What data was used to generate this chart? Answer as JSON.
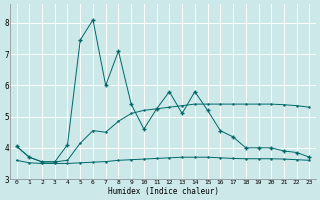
{
  "xlabel": "Humidex (Indice chaleur)",
  "ylabel": "",
  "background_color": "#cce8e8",
  "grid_color": "#ffffff",
  "line_color": "#006868",
  "xlim": [
    -0.5,
    23.5
  ],
  "ylim": [
    3.0,
    8.6
  ],
  "yticks": [
    3,
    4,
    5,
    6,
    7,
    8
  ],
  "xticks": [
    0,
    1,
    2,
    3,
    4,
    5,
    6,
    7,
    8,
    9,
    10,
    11,
    12,
    13,
    14,
    15,
    16,
    17,
    18,
    19,
    20,
    21,
    22,
    23
  ],
  "series_main_x": [
    0,
    1,
    2,
    3,
    4,
    5,
    6,
    7,
    8,
    9,
    10,
    11,
    12,
    13,
    14,
    15,
    16,
    17,
    18,
    19,
    20,
    21,
    22,
    23
  ],
  "series_main_y": [
    4.05,
    3.7,
    3.55,
    3.55,
    4.1,
    7.45,
    8.1,
    6.0,
    7.1,
    5.4,
    4.6,
    5.25,
    5.8,
    5.1,
    5.8,
    5.2,
    4.55,
    4.35,
    4.0,
    4.0,
    4.0,
    3.9,
    3.85,
    3.7
  ],
  "series_mid_x": [
    0,
    1,
    2,
    3,
    4,
    5,
    6,
    7,
    8,
    9,
    10,
    11,
    12,
    13,
    14,
    15,
    16,
    17,
    18,
    19,
    20,
    21,
    22,
    23
  ],
  "series_mid_y": [
    4.05,
    3.7,
    3.55,
    3.55,
    3.6,
    4.15,
    4.55,
    4.5,
    4.85,
    5.1,
    5.2,
    5.25,
    5.3,
    5.35,
    5.4,
    5.4,
    5.4,
    5.4,
    5.4,
    5.4,
    5.4,
    5.38,
    5.35,
    5.3
  ],
  "series_low_x": [
    0,
    1,
    2,
    3,
    4,
    5,
    6,
    7,
    8,
    9,
    10,
    11,
    12,
    13,
    14,
    15,
    16,
    17,
    18,
    19,
    20,
    21,
    22,
    23
  ],
  "series_low_y": [
    3.6,
    3.52,
    3.5,
    3.5,
    3.5,
    3.52,
    3.54,
    3.56,
    3.6,
    3.62,
    3.64,
    3.66,
    3.68,
    3.7,
    3.7,
    3.7,
    3.68,
    3.66,
    3.65,
    3.65,
    3.65,
    3.64,
    3.62,
    3.6
  ],
  "figsize": [
    3.2,
    2.0
  ],
  "dpi": 100
}
